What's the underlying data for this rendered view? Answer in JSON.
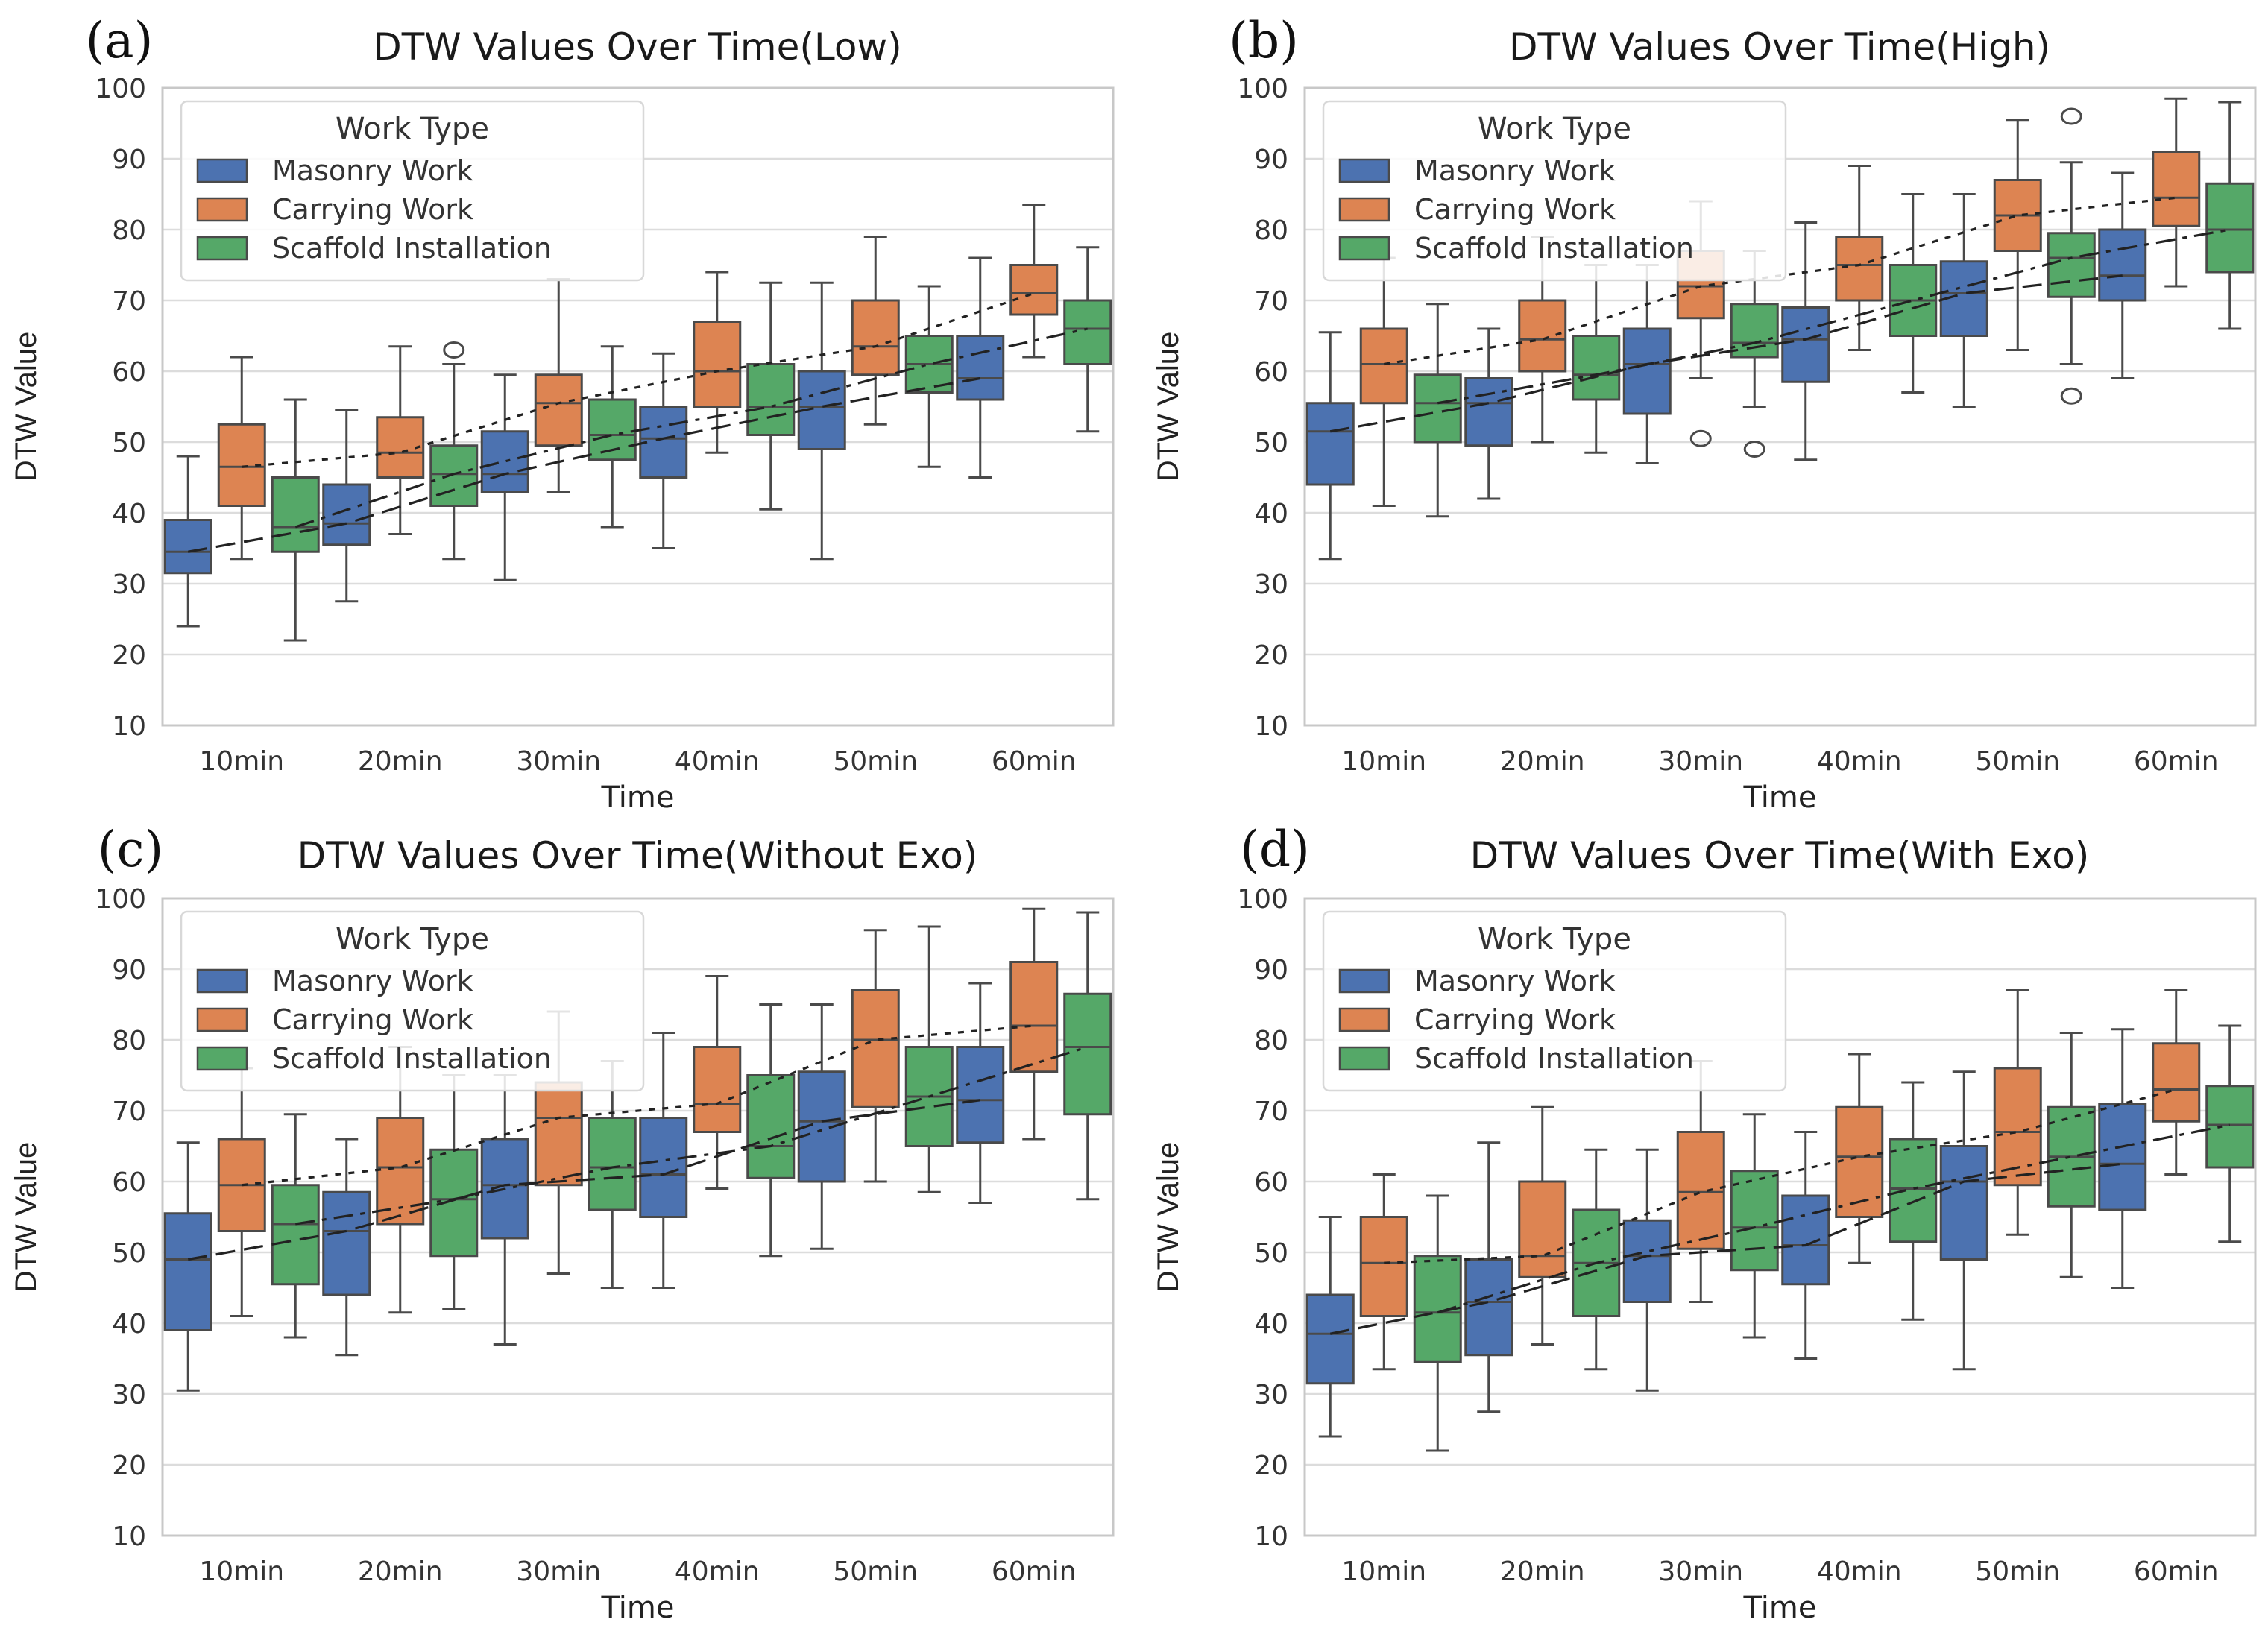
{
  "chart_data": [
    {
      "type": "box",
      "panel_label": "(a)",
      "title": "DTW Values Over Time(Low)",
      "xlabel": "Time",
      "ylabel": "DTW Value",
      "ylim": [
        10,
        100
      ],
      "yticks": [
        10,
        20,
        30,
        40,
        50,
        60,
        70,
        80,
        90,
        100
      ],
      "grid": true,
      "legend": {
        "title": "Work Type",
        "position": "top-left"
      },
      "categories": [
        "10min",
        "20min",
        "30min",
        "40min",
        "50min",
        "60min"
      ],
      "series": [
        {
          "name": "Masonry Work",
          "color": "#4c72b0",
          "trend": "dashed",
          "boxes": [
            {
              "whislo": 24,
              "q1": 31.5,
              "med": 34.5,
              "q3": 39,
              "whishi": 48,
              "fliers": []
            },
            {
              "whislo": 27.5,
              "q1": 35.5,
              "med": 38.5,
              "q3": 44,
              "whishi": 54.5,
              "fliers": []
            },
            {
              "whislo": 30.5,
              "q1": 43,
              "med": 45.5,
              "q3": 51.5,
              "whishi": 59.5,
              "fliers": []
            },
            {
              "whislo": 35,
              "q1": 45,
              "med": 50.5,
              "q3": 55,
              "whishi": 62.5,
              "fliers": []
            },
            {
              "whislo": 33.5,
              "q1": 49,
              "med": 55,
              "q3": 60,
              "whishi": 72.5,
              "fliers": []
            },
            {
              "whislo": 45,
              "q1": 56,
              "med": 59,
              "q3": 65,
              "whishi": 76,
              "fliers": []
            }
          ]
        },
        {
          "name": "Carrying Work",
          "color": "#dd8452",
          "trend": "dotted",
          "boxes": [
            {
              "whislo": 33.5,
              "q1": 41,
              "med": 46.5,
              "q3": 52.5,
              "whishi": 62,
              "fliers": []
            },
            {
              "whislo": 37,
              "q1": 45,
              "med": 48.5,
              "q3": 53.5,
              "whishi": 63.5,
              "fliers": []
            },
            {
              "whislo": 43,
              "q1": 49.5,
              "med": 55.5,
              "q3": 59.5,
              "whishi": 73,
              "fliers": []
            },
            {
              "whislo": 48.5,
              "q1": 55,
              "med": 60,
              "q3": 67,
              "whishi": 74,
              "fliers": []
            },
            {
              "whislo": 52.5,
              "q1": 59.5,
              "med": 63.5,
              "q3": 70,
              "whishi": 79,
              "fliers": []
            },
            {
              "whislo": 62,
              "q1": 68,
              "med": 71,
              "q3": 75,
              "whishi": 83.5,
              "fliers": []
            }
          ]
        },
        {
          "name": "Scaffold Installation",
          "color": "#55a868",
          "trend": "dashdot",
          "boxes": [
            {
              "whislo": 22,
              "q1": 34.5,
              "med": 38,
              "q3": 45,
              "whishi": 56,
              "fliers": []
            },
            {
              "whislo": 33.5,
              "q1": 41,
              "med": 45.5,
              "q3": 49.5,
              "whishi": 61,
              "fliers": [
                63
              ]
            },
            {
              "whislo": 38,
              "q1": 47.5,
              "med": 51,
              "q3": 56,
              "whishi": 63.5,
              "fliers": []
            },
            {
              "whislo": 40.5,
              "q1": 51,
              "med": 55,
              "q3": 61,
              "whishi": 72.5,
              "fliers": []
            },
            {
              "whislo": 46.5,
              "q1": 57,
              "med": 61,
              "q3": 65,
              "whishi": 72,
              "fliers": []
            },
            {
              "whislo": 51.5,
              "q1": 61,
              "med": 66,
              "q3": 70,
              "whishi": 77.5,
              "fliers": []
            }
          ]
        }
      ]
    },
    {
      "type": "box",
      "panel_label": "(b)",
      "title": "DTW Values Over Time(High)",
      "xlabel": "Time",
      "ylabel": "DTW Value",
      "ylim": [
        10,
        100
      ],
      "yticks": [
        10,
        20,
        30,
        40,
        50,
        60,
        70,
        80,
        90,
        100
      ],
      "grid": true,
      "legend": {
        "title": "Work Type",
        "position": "top-left"
      },
      "categories": [
        "10min",
        "20min",
        "30min",
        "40min",
        "50min",
        "60min"
      ],
      "series": [
        {
          "name": "Masonry Work",
          "color": "#4c72b0",
          "trend": "dashed",
          "boxes": [
            {
              "whislo": 33.5,
              "q1": 44,
              "med": 51.5,
              "q3": 55.5,
              "whishi": 65.5,
              "fliers": []
            },
            {
              "whislo": 42,
              "q1": 49.5,
              "med": 55.5,
              "q3": 59,
              "whishi": 66,
              "fliers": []
            },
            {
              "whislo": 47,
              "q1": 54,
              "med": 61,
              "q3": 66,
              "whishi": 75,
              "fliers": []
            },
            {
              "whislo": 47.5,
              "q1": 58.5,
              "med": 64.5,
              "q3": 69,
              "whishi": 81,
              "fliers": []
            },
            {
              "whislo": 55,
              "q1": 65,
              "med": 71,
              "q3": 75.5,
              "whishi": 85,
              "fliers": []
            },
            {
              "whislo": 59,
              "q1": 70,
              "med": 73.5,
              "q3": 80,
              "whishi": 88,
              "fliers": []
            }
          ]
        },
        {
          "name": "Carrying Work",
          "color": "#dd8452",
          "trend": "dotted",
          "boxes": [
            {
              "whislo": 41,
              "q1": 55.5,
              "med": 61,
              "q3": 66,
              "whishi": 76,
              "fliers": []
            },
            {
              "whislo": 50,
              "q1": 60,
              "med": 64.5,
              "q3": 70,
              "whishi": 79,
              "fliers": []
            },
            {
              "whislo": 59,
              "q1": 67.5,
              "med": 72,
              "q3": 77,
              "whishi": 84,
              "fliers": [
                50.5
              ]
            },
            {
              "whislo": 63,
              "q1": 70,
              "med": 75,
              "q3": 79,
              "whishi": 89,
              "fliers": []
            },
            {
              "whislo": 63,
              "q1": 77,
              "med": 82,
              "q3": 87,
              "whishi": 95.5,
              "fliers": []
            },
            {
              "whislo": 72,
              "q1": 80.5,
              "med": 84.5,
              "q3": 91,
              "whishi": 98.5,
              "fliers": []
            }
          ]
        },
        {
          "name": "Scaffold Installation",
          "color": "#55a868",
          "trend": "dashdot",
          "boxes": [
            {
              "whislo": 39.5,
              "q1": 50,
              "med": 55.5,
              "q3": 59.5,
              "whishi": 69.5,
              "fliers": []
            },
            {
              "whislo": 48.5,
              "q1": 56,
              "med": 59.5,
              "q3": 65,
              "whishi": 75,
              "fliers": []
            },
            {
              "whislo": 55,
              "q1": 62,
              "med": 64,
              "q3": 69.5,
              "whishi": 77,
              "fliers": [
                49
              ]
            },
            {
              "whislo": 57,
              "q1": 65,
              "med": 70,
              "q3": 75,
              "whishi": 85,
              "fliers": []
            },
            {
              "whislo": 61,
              "q1": 70.5,
              "med": 76,
              "q3": 79.5,
              "whishi": 89.5,
              "fliers": [
                56.5,
                96
              ]
            },
            {
              "whislo": 66,
              "q1": 74,
              "med": 80,
              "q3": 86.5,
              "whishi": 98,
              "fliers": []
            }
          ]
        }
      ]
    },
    {
      "type": "box",
      "panel_label": "(c)",
      "title": "DTW Values Over Time(Without Exo)",
      "xlabel": "Time",
      "ylabel": "DTW Value",
      "ylim": [
        10,
        100
      ],
      "yticks": [
        10,
        20,
        30,
        40,
        50,
        60,
        70,
        80,
        90,
        100
      ],
      "grid": true,
      "legend": {
        "title": "Work Type",
        "position": "top-left"
      },
      "categories": [
        "10min",
        "20min",
        "30min",
        "40min",
        "50min",
        "60min"
      ],
      "series": [
        {
          "name": "Masonry Work",
          "color": "#4c72b0",
          "trend": "dashed",
          "boxes": [
            {
              "whislo": 30.5,
              "q1": 39,
              "med": 49,
              "q3": 55.5,
              "whishi": 65.5,
              "fliers": []
            },
            {
              "whislo": 35.5,
              "q1": 44,
              "med": 53,
              "q3": 58.5,
              "whishi": 66,
              "fliers": []
            },
            {
              "whislo": 37,
              "q1": 52,
              "med": 59.5,
              "q3": 66,
              "whishi": 75,
              "fliers": []
            },
            {
              "whislo": 45,
              "q1": 55,
              "med": 61,
              "q3": 69,
              "whishi": 81,
              "fliers": []
            },
            {
              "whislo": 50.5,
              "q1": 60,
              "med": 68.5,
              "q3": 75.5,
              "whishi": 85,
              "fliers": []
            },
            {
              "whislo": 57,
              "q1": 65.5,
              "med": 71.5,
              "q3": 79,
              "whishi": 88,
              "fliers": []
            }
          ]
        },
        {
          "name": "Carrying Work",
          "color": "#dd8452",
          "trend": "dotted",
          "boxes": [
            {
              "whislo": 41,
              "q1": 53,
              "med": 59.5,
              "q3": 66,
              "whishi": 76,
              "fliers": []
            },
            {
              "whislo": 41.5,
              "q1": 54,
              "med": 62,
              "q3": 69,
              "whishi": 79,
              "fliers": []
            },
            {
              "whislo": 47,
              "q1": 59.5,
              "med": 69,
              "q3": 74,
              "whishi": 84,
              "fliers": []
            },
            {
              "whislo": 59,
              "q1": 67,
              "med": 71,
              "q3": 79,
              "whishi": 89,
              "fliers": []
            },
            {
              "whislo": 60,
              "q1": 70.5,
              "med": 80,
              "q3": 87,
              "whishi": 95.5,
              "fliers": []
            },
            {
              "whislo": 66,
              "q1": 75.5,
              "med": 82,
              "q3": 91,
              "whishi": 98.5,
              "fliers": []
            }
          ]
        },
        {
          "name": "Scaffold Installation",
          "color": "#55a868",
          "trend": "dashdot",
          "boxes": [
            {
              "whislo": 38,
              "q1": 45.5,
              "med": 54,
              "q3": 59.5,
              "whishi": 69.5,
              "fliers": []
            },
            {
              "whislo": 42,
              "q1": 49.5,
              "med": 57.5,
              "q3": 64.5,
              "whishi": 75,
              "fliers": []
            },
            {
              "whislo": 45,
              "q1": 56,
              "med": 62,
              "q3": 69,
              "whishi": 77,
              "fliers": []
            },
            {
              "whislo": 49.5,
              "q1": 60.5,
              "med": 65,
              "q3": 75,
              "whishi": 85,
              "fliers": []
            },
            {
              "whislo": 58.5,
              "q1": 65,
              "med": 72,
              "q3": 79,
              "whishi": 96,
              "fliers": []
            },
            {
              "whislo": 57.5,
              "q1": 69.5,
              "med": 79,
              "q3": 86.5,
              "whishi": 98,
              "fliers": []
            }
          ]
        }
      ]
    },
    {
      "type": "box",
      "panel_label": "(d)",
      "title": "DTW Values Over Time(With Exo)",
      "xlabel": "Time",
      "ylabel": "DTW Value",
      "ylim": [
        10,
        100
      ],
      "yticks": [
        10,
        20,
        30,
        40,
        50,
        60,
        70,
        80,
        90,
        100
      ],
      "grid": true,
      "legend": {
        "title": "Work Type",
        "position": "top-left"
      },
      "categories": [
        "10min",
        "20min",
        "30min",
        "40min",
        "50min",
        "60min"
      ],
      "series": [
        {
          "name": "Masonry Work",
          "color": "#4c72b0",
          "trend": "dashed",
          "boxes": [
            {
              "whislo": 24,
              "q1": 31.5,
              "med": 38.5,
              "q3": 44,
              "whishi": 55,
              "fliers": []
            },
            {
              "whislo": 27.5,
              "q1": 35.5,
              "med": 43,
              "q3": 49,
              "whishi": 65.5,
              "fliers": []
            },
            {
              "whislo": 30.5,
              "q1": 43,
              "med": 49.5,
              "q3": 54.5,
              "whishi": 64.5,
              "fliers": []
            },
            {
              "whislo": 35,
              "q1": 45.5,
              "med": 51,
              "q3": 58,
              "whishi": 67,
              "fliers": []
            },
            {
              "whislo": 33.5,
              "q1": 49,
              "med": 60,
              "q3": 65,
              "whishi": 75.5,
              "fliers": []
            },
            {
              "whislo": 45,
              "q1": 56,
              "med": 62.5,
              "q3": 71,
              "whishi": 81.5,
              "fliers": []
            }
          ]
        },
        {
          "name": "Carrying Work",
          "color": "#dd8452",
          "trend": "dotted",
          "boxes": [
            {
              "whislo": 33.5,
              "q1": 41,
              "med": 48.5,
              "q3": 55,
              "whishi": 61,
              "fliers": []
            },
            {
              "whislo": 37,
              "q1": 46.5,
              "med": 49.5,
              "q3": 60,
              "whishi": 70.5,
              "fliers": []
            },
            {
              "whislo": 43,
              "q1": 50.5,
              "med": 58.5,
              "q3": 67,
              "whishi": 77,
              "fliers": []
            },
            {
              "whislo": 48.5,
              "q1": 55,
              "med": 63.5,
              "q3": 70.5,
              "whishi": 78,
              "fliers": []
            },
            {
              "whislo": 52.5,
              "q1": 59.5,
              "med": 67,
              "q3": 76,
              "whishi": 87,
              "fliers": []
            },
            {
              "whislo": 61,
              "q1": 68.5,
              "med": 73,
              "q3": 79.5,
              "whishi": 87,
              "fliers": []
            }
          ]
        },
        {
          "name": "Scaffold Installation",
          "color": "#55a868",
          "trend": "dashdot",
          "boxes": [
            {
              "whislo": 22,
              "q1": 34.5,
              "med": 41.5,
              "q3": 49.5,
              "whishi": 58,
              "fliers": []
            },
            {
              "whislo": 33.5,
              "q1": 41,
              "med": 48.5,
              "q3": 56,
              "whishi": 64.5,
              "fliers": []
            },
            {
              "whislo": 38,
              "q1": 47.5,
              "med": 53.5,
              "q3": 61.5,
              "whishi": 69.5,
              "fliers": []
            },
            {
              "whislo": 40.5,
              "q1": 51.5,
              "med": 59,
              "q3": 66,
              "whishi": 74,
              "fliers": []
            },
            {
              "whislo": 46.5,
              "q1": 56.5,
              "med": 63.5,
              "q3": 70.5,
              "whishi": 81,
              "fliers": []
            },
            {
              "whislo": 51.5,
              "q1": 62,
              "med": 68,
              "q3": 73.5,
              "whishi": 82,
              "fliers": []
            }
          ]
        }
      ]
    }
  ]
}
